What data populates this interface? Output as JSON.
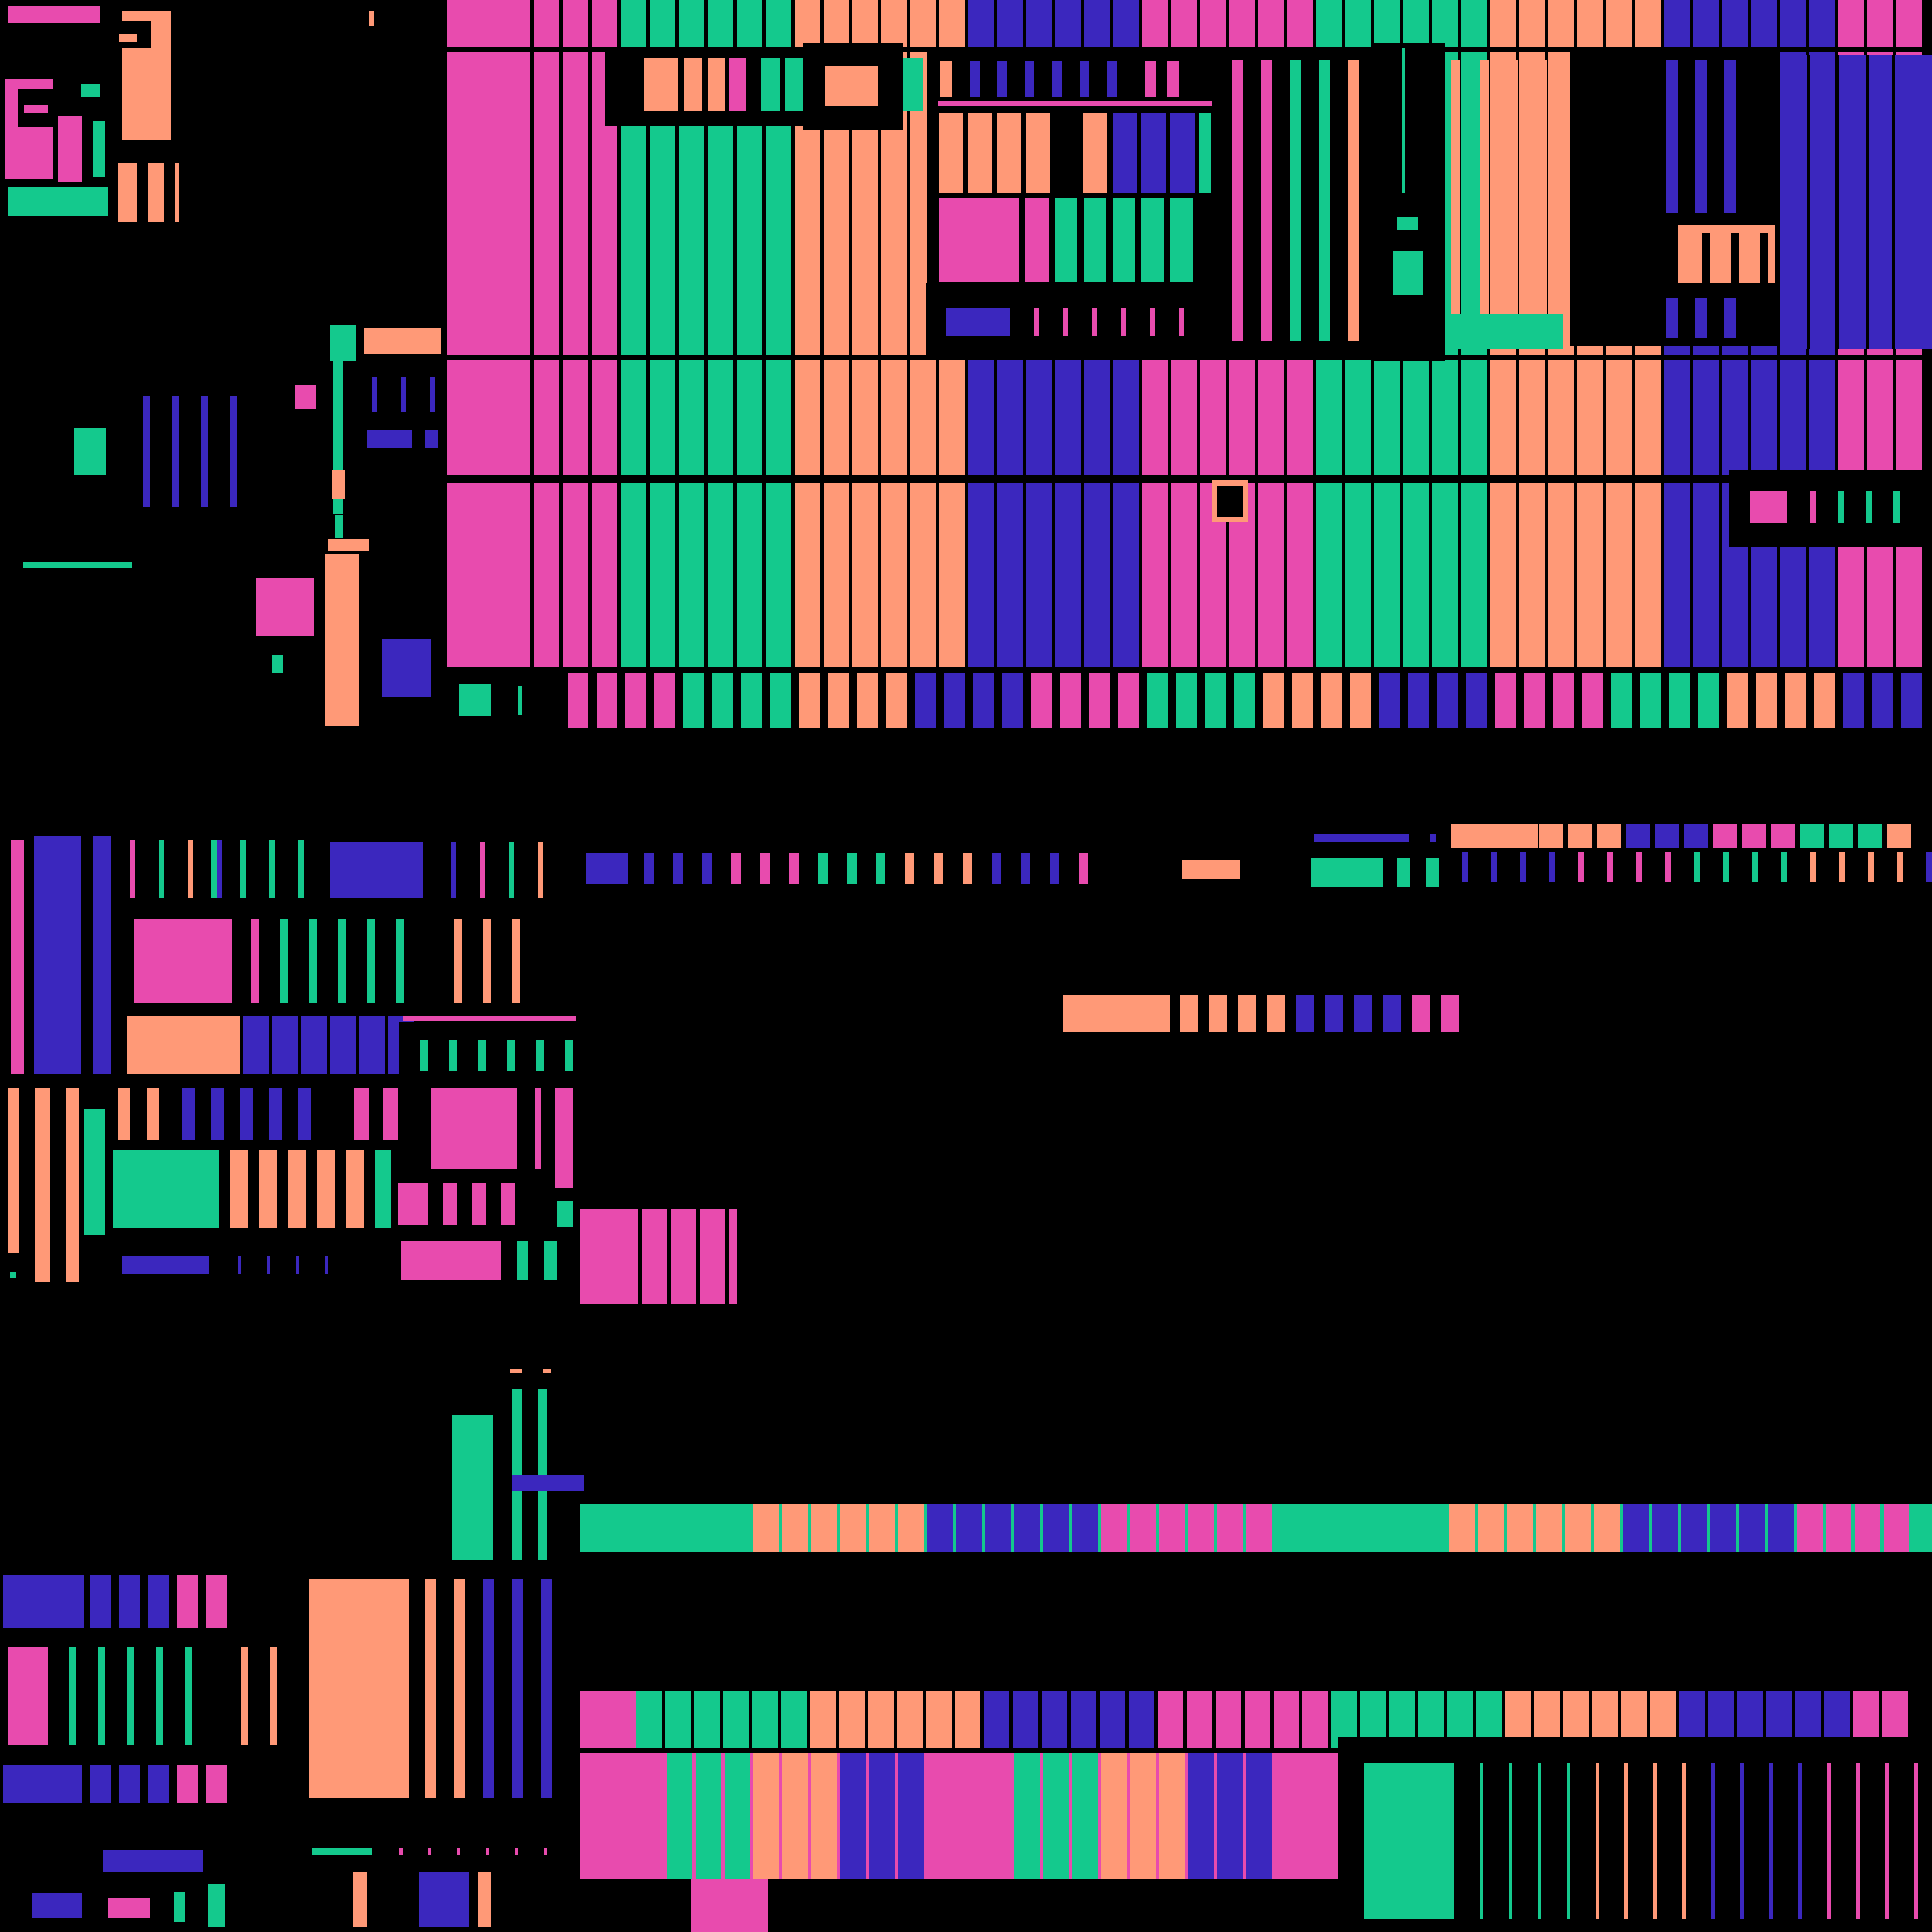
{
  "palette": {
    "background": "#000000",
    "pink": "#E84BAE",
    "green": "#14C98D",
    "salmon": "#FF9977",
    "indigo": "#3B27BE"
  },
  "cycle": [
    "pink",
    "green",
    "salmon",
    "indigo"
  ]
}
